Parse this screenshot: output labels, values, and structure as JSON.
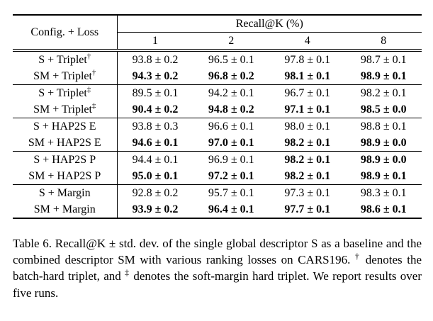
{
  "colors": {
    "text": "#000000",
    "background": "#ffffff",
    "rule": "#000000"
  },
  "table": {
    "header": {
      "config_loss": "Config. + Loss",
      "recall_group": "Recall@K (%)",
      "k_values": [
        "1",
        "2",
        "4",
        "8"
      ]
    },
    "rows": [
      {
        "label": "S + Triplet",
        "sup": "†",
        "cells": [
          {
            "text": "93.8 ± 0.2",
            "bold": false
          },
          {
            "text": "96.5 ± 0.1",
            "bold": false
          },
          {
            "text": "97.8 ± 0.1",
            "bold": false
          },
          {
            "text": "98.7 ± 0.1",
            "bold": false
          }
        ]
      },
      {
        "label": "SM + Triplet",
        "sup": "†",
        "cells": [
          {
            "text": "94.3 ± 0.2",
            "bold": true
          },
          {
            "text": "96.8 ± 0.2",
            "bold": true
          },
          {
            "text": "98.1 ± 0.1",
            "bold": true
          },
          {
            "text": "98.9 ± 0.1",
            "bold": true
          }
        ]
      },
      {
        "label": "S + Triplet",
        "sup": "‡",
        "cells": [
          {
            "text": "89.5 ± 0.1",
            "bold": false
          },
          {
            "text": "94.2 ± 0.1",
            "bold": false
          },
          {
            "text": "96.7 ± 0.1",
            "bold": false
          },
          {
            "text": "98.2 ± 0.1",
            "bold": false
          }
        ]
      },
      {
        "label": "SM + Triplet",
        "sup": "‡",
        "cells": [
          {
            "text": "90.4 ± 0.2",
            "bold": true
          },
          {
            "text": "94.8 ± 0.2",
            "bold": true
          },
          {
            "text": "97.1 ± 0.1",
            "bold": true
          },
          {
            "text": "98.5 ± 0.0",
            "bold": true
          }
        ]
      },
      {
        "label": "S + HAP2S E",
        "sup": "",
        "cells": [
          {
            "text": "93.8 ± 0.3",
            "bold": false
          },
          {
            "text": "96.6 ± 0.1",
            "bold": false
          },
          {
            "text": "98.0 ± 0.1",
            "bold": false
          },
          {
            "text": "98.8 ± 0.1",
            "bold": false
          }
        ]
      },
      {
        "label": "SM + HAP2S E",
        "sup": "",
        "cells": [
          {
            "text": "94.6 ± 0.1",
            "bold": true
          },
          {
            "text": "97.0 ± 0.1",
            "bold": true
          },
          {
            "text": "98.2 ± 0.1",
            "bold": true
          },
          {
            "text": "98.9 ± 0.0",
            "bold": true
          }
        ]
      },
      {
        "label": "S + HAP2S P",
        "sup": "",
        "cells": [
          {
            "text": "94.4 ± 0.1",
            "bold": false
          },
          {
            "text": "96.9 ± 0.1",
            "bold": false
          },
          {
            "text": "98.2 ± 0.1",
            "bold": true
          },
          {
            "text": "98.9 ± 0.0",
            "bold": true
          }
        ]
      },
      {
        "label": "SM + HAP2S P",
        "sup": "",
        "cells": [
          {
            "text": "95.0 ± 0.1",
            "bold": true
          },
          {
            "text": "97.2 ± 0.1",
            "bold": true
          },
          {
            "text": "98.2 ± 0.1",
            "bold": true
          },
          {
            "text": "98.9 ± 0.1",
            "bold": true
          }
        ]
      },
      {
        "label": "S + Margin",
        "sup": "",
        "cells": [
          {
            "text": "92.8 ± 0.2",
            "bold": false
          },
          {
            "text": "95.7 ± 0.1",
            "bold": false
          },
          {
            "text": "97.3 ± 0.1",
            "bold": false
          },
          {
            "text": "98.3 ± 0.1",
            "bold": false
          }
        ]
      },
      {
        "label": "SM + Margin",
        "sup": "",
        "cells": [
          {
            "text": "93.9 ± 0.2",
            "bold": true
          },
          {
            "text": "96.4 ± 0.1",
            "bold": true
          },
          {
            "text": "97.7 ± 0.1",
            "bold": true
          },
          {
            "text": "98.6 ± 0.1",
            "bold": true
          }
        ]
      }
    ]
  },
  "caption": {
    "parts": [
      {
        "text": "Table 6. Recall@K ± std. dev. of the single global descriptor S as a baseline and the combined descriptor SM with various ranking losses on CARS196. ",
        "sup": false
      },
      {
        "text": "†",
        "sup": true
      },
      {
        "text": " denotes the batch-hard triplet, and ",
        "sup": false
      },
      {
        "text": "‡",
        "sup": true
      },
      {
        "text": " denotes the soft-margin hard triplet. We report results over five runs.",
        "sup": false
      }
    ]
  }
}
